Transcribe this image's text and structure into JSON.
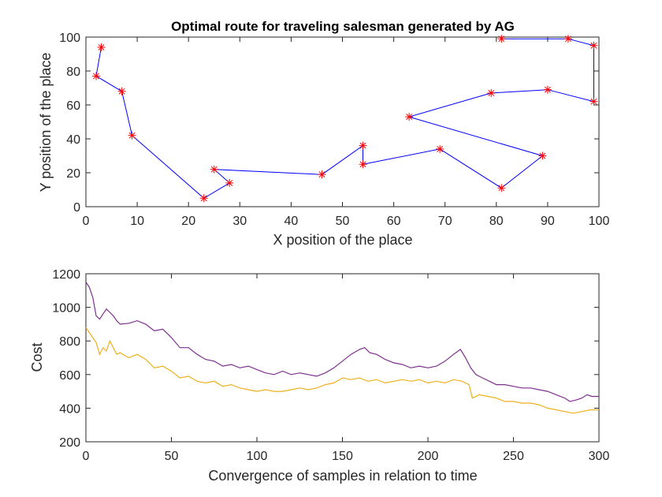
{
  "chart_data": [
    {
      "type": "line",
      "title": "Optimal route for traveling salesman generated by AG",
      "xlabel": "X position of the place",
      "ylabel": "Y position of the place",
      "xlim": [
        0,
        100
      ],
      "ylim": [
        0,
        100
      ],
      "xticks": [
        "0",
        "10",
        "20",
        "30",
        "40",
        "50",
        "60",
        "70",
        "80",
        "90",
        "100"
      ],
      "yticks": [
        "0",
        "20",
        "40",
        "60",
        "80",
        "100"
      ],
      "grid": false,
      "line_color": "#0000ff",
      "marker": "*",
      "marker_color": "#ff0000",
      "route": {
        "x": [
          81,
          94,
          99,
          99,
          90,
          79,
          63,
          89,
          81,
          69,
          54,
          54,
          46,
          25,
          28,
          23,
          9,
          7,
          2,
          3
        ],
        "y": [
          99,
          99,
          95,
          62,
          69,
          67,
          53,
          30,
          11,
          34,
          25,
          36,
          19,
          22,
          14,
          5,
          42,
          68,
          77,
          94
        ]
      }
    },
    {
      "type": "line",
      "title": "",
      "xlabel": "Convergence of samples in relation to time",
      "ylabel": "Cost",
      "xlim": [
        0,
        300
      ],
      "ylim": [
        200,
        1200
      ],
      "xticks": [
        "0",
        "50",
        "100",
        "150",
        "200",
        "250",
        "300"
      ],
      "yticks": [
        "200",
        "400",
        "600",
        "800",
        "1000",
        "1200"
      ],
      "grid": false,
      "series": [
        {
          "color": "#7e2f8e",
          "x": [
            0,
            2,
            4,
            6,
            8,
            10,
            12,
            14,
            16,
            18,
            20,
            25,
            30,
            35,
            40,
            45,
            50,
            55,
            60,
            65,
            70,
            75,
            80,
            85,
            90,
            95,
            100,
            105,
            110,
            115,
            120,
            125,
            130,
            135,
            140,
            145,
            150,
            155,
            160,
            163,
            166,
            170,
            175,
            180,
            185,
            190,
            195,
            200,
            205,
            210,
            215,
            219,
            222,
            225,
            228,
            232,
            236,
            240,
            245,
            250,
            255,
            260,
            265,
            270,
            275,
            280,
            283,
            287,
            290,
            293,
            296,
            300
          ],
          "y": [
            1150,
            1120,
            1060,
            950,
            930,
            960,
            990,
            970,
            950,
            920,
            900,
            905,
            920,
            900,
            860,
            870,
            820,
            760,
            760,
            720,
            690,
            680,
            650,
            660,
            640,
            650,
            630,
            610,
            600,
            620,
            600,
            610,
            600,
            590,
            610,
            640,
            680,
            720,
            750,
            760,
            730,
            720,
            690,
            670,
            660,
            640,
            650,
            640,
            650,
            680,
            720,
            750,
            700,
            640,
            600,
            580,
            560,
            540,
            540,
            530,
            520,
            520,
            510,
            500,
            480,
            460,
            440,
            450,
            460,
            480,
            470,
            470
          ]
        },
        {
          "color": "#edb120",
          "x": [
            0,
            2,
            4,
            6,
            8,
            10,
            12,
            14,
            16,
            18,
            20,
            25,
            30,
            35,
            40,
            45,
            50,
            55,
            60,
            65,
            70,
            75,
            80,
            85,
            90,
            95,
            100,
            105,
            110,
            115,
            120,
            125,
            130,
            135,
            140,
            145,
            150,
            155,
            160,
            165,
            170,
            175,
            180,
            185,
            190,
            195,
            200,
            205,
            210,
            215,
            220,
            224,
            226,
            230,
            235,
            240,
            245,
            250,
            255,
            260,
            265,
            270,
            275,
            280,
            285,
            290,
            295,
            300
          ],
          "y": [
            880,
            850,
            820,
            790,
            720,
            760,
            740,
            800,
            760,
            720,
            730,
            700,
            720,
            690,
            640,
            650,
            620,
            580,
            590,
            560,
            550,
            560,
            530,
            540,
            520,
            510,
            500,
            510,
            500,
            500,
            510,
            520,
            510,
            520,
            540,
            550,
            580,
            570,
            580,
            560,
            570,
            550,
            560,
            570,
            560,
            570,
            550,
            560,
            550,
            570,
            560,
            540,
            460,
            480,
            470,
            460,
            440,
            440,
            430,
            430,
            420,
            400,
            390,
            380,
            370,
            380,
            390,
            390
          ]
        }
      ]
    }
  ]
}
